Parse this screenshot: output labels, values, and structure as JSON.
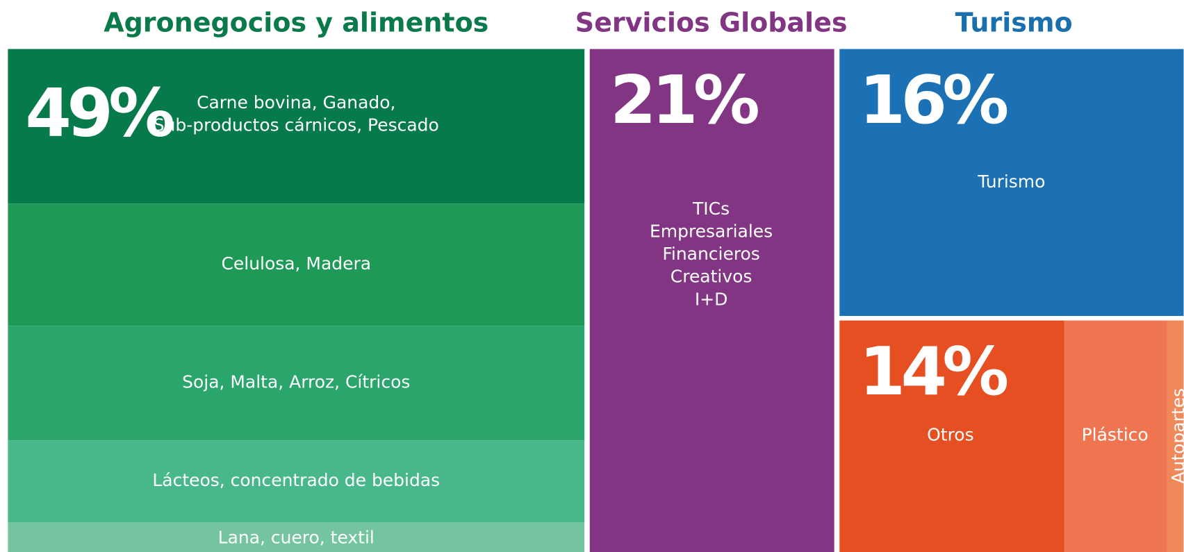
{
  "chart_data": {
    "type": "treemap",
    "categories": [
      "Agronegocios y alimentos",
      "Servicios Globales",
      "Turismo",
      null
    ],
    "values": [
      49,
      21,
      16,
      14
    ],
    "value_labels": [
      "49%",
      "21%",
      "16%",
      "14%"
    ],
    "colors": [
      "#0a7a4a",
      "#813583",
      "#1a6fad",
      "#e64f22"
    ],
    "items": [
      [
        {
          "lines": [
            "Carne bovina, Ganado,",
            "Sub-productos cárnicos, Pescado"
          ],
          "color": "#067a4b"
        },
        {
          "lines": [
            "Celulosa, Madera"
          ],
          "color": "#1e9a56"
        },
        {
          "lines": [
            "Soja, Malta, Arroz, Cítricos"
          ],
          "color": "#2aa56b"
        },
        {
          "lines": [
            "Lácteos, concentrado de bebidas"
          ],
          "color": "#48b88a"
        },
        {
          "lines": [
            "Lana, cuero, textil"
          ],
          "color": "#74c4a0"
        }
      ],
      [
        {
          "lines": [
            "TICs",
            "Empresariales",
            "Financieros",
            "Creativos",
            "I+D"
          ],
          "color": "#813583"
        }
      ],
      [
        {
          "lines": [
            "Turismo"
          ],
          "color": "#1b71b3"
        }
      ],
      [
        {
          "lines": [
            "Otros"
          ],
          "color": "#e64f22"
        },
        {
          "lines": [
            "Plástico"
          ],
          "color": "#ee7550"
        },
        {
          "lines": [
            "Autopartes"
          ],
          "color": "#f0885a"
        }
      ]
    ]
  }
}
